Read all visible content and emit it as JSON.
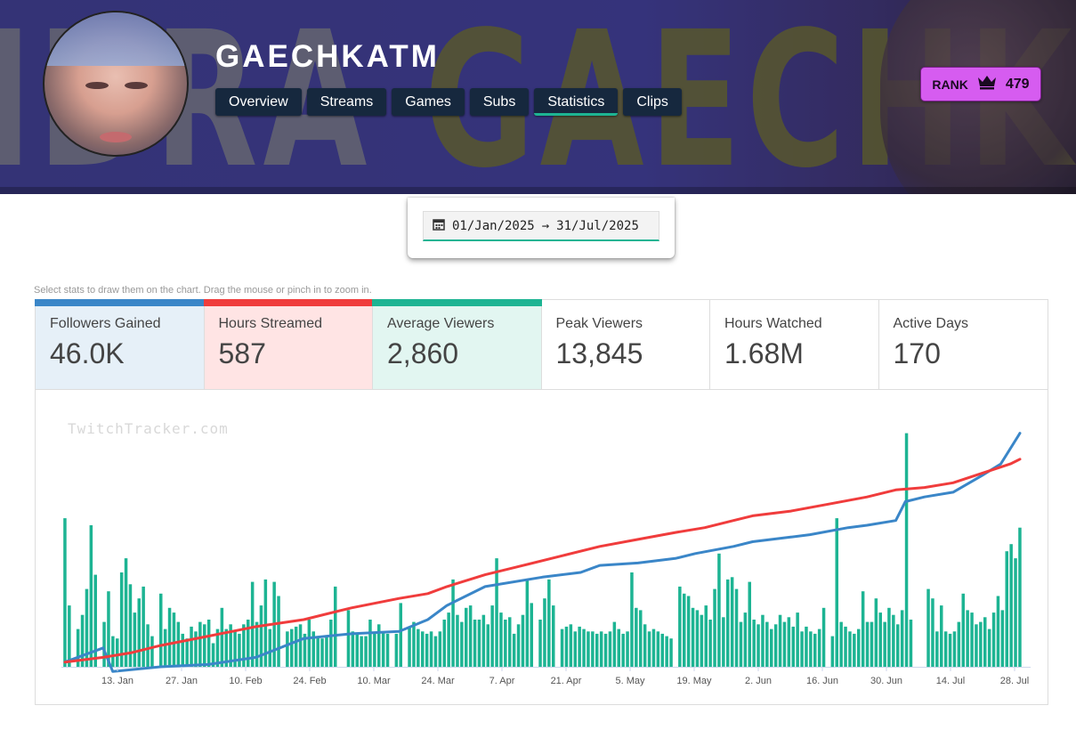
{
  "channel": {
    "name": "GAECHKATM",
    "banner_text_1": "IDRA",
    "banner_text_2": "GAECHKATM"
  },
  "nav": {
    "tabs": [
      "Overview",
      "Streams",
      "Games",
      "Subs",
      "Statistics",
      "Clips"
    ],
    "active": "Statistics"
  },
  "rank": {
    "label": "RANK",
    "icon": "crown-icon",
    "value": "479"
  },
  "date_range": {
    "start": "01/Jan/2025",
    "arrow": "→",
    "end": "31/Jul/2025",
    "icon": "calendar-icon"
  },
  "hint": "Select stats to draw them on the chart. Drag the mouse or pinch in to zoom in.",
  "stats": [
    {
      "label": "Followers Gained",
      "value": "46.0K",
      "selected": true,
      "color": "#3a86c8",
      "bg": "#e6f0f8"
    },
    {
      "label": "Hours Streamed",
      "value": "587",
      "selected": true,
      "color": "#f03c3c",
      "bg": "#ffe4e4"
    },
    {
      "label": "Average Viewers",
      "value": "2,860",
      "selected": true,
      "color": "#1db493",
      "bg": "#e2f6f1"
    },
    {
      "label": "Peak Viewers",
      "value": "13,845",
      "selected": false,
      "color": "",
      "bg": "#ffffff"
    },
    {
      "label": "Hours Watched",
      "value": "1.68M",
      "selected": false,
      "color": "",
      "bg": "#ffffff"
    },
    {
      "label": "Active Days",
      "value": "170",
      "selected": false,
      "color": "",
      "bg": "#ffffff"
    }
  ],
  "chart": {
    "watermark": "TwitchTracker.com"
  },
  "chart_data": {
    "type": "bar",
    "x_ticks": [
      "13. Jan",
      "27. Jan",
      "10. Feb",
      "24. Feb",
      "10. Mar",
      "24. Mar",
      "7. Apr",
      "21. Apr",
      "5. May",
      "19. May",
      "2. Jun",
      "16. Jun",
      "30. Jun",
      "14. Jul",
      "28. Jul"
    ],
    "series": [
      {
        "type": "bar",
        "color": "#1db493",
        "values": [
          0.63,
          0.26,
          0,
          0.16,
          0.22,
          0.33,
          0.6,
          0.39,
          0,
          0.19,
          0.32,
          0.13,
          0.12,
          0.4,
          0.46,
          0.35,
          0.23,
          0.29,
          0.34,
          0.18,
          0.13,
          0,
          0.31,
          0.16,
          0.25,
          0.23,
          0.19,
          0.14,
          0.12,
          0.17,
          0.15,
          0.19,
          0.18,
          0.2,
          0.1,
          0.16,
          0.25,
          0.16,
          0.18,
          0.15,
          0.14,
          0.18,
          0.2,
          0.36,
          0.19,
          0.26,
          0.37,
          0.16,
          0.36,
          0.3,
          0,
          0.15,
          0.16,
          0.17,
          0.18,
          0.14,
          0.2,
          0.15,
          0.13,
          0.12,
          0.13,
          0.2,
          0.34,
          0,
          0,
          0.24,
          0.15,
          0.14,
          0.13,
          0.13,
          0.2,
          0.14,
          0.18,
          0.15,
          0.14,
          0,
          0.14,
          0.27,
          0,
          0.17,
          0.19,
          0.16,
          0.15,
          0.14,
          0.15,
          0.13,
          0.15,
          0.2,
          0.23,
          0.37,
          0.22,
          0.19,
          0.25,
          0.26,
          0.2,
          0.2,
          0.22,
          0.18,
          0.26,
          0.46,
          0.23,
          0.2,
          0.21,
          0.14,
          0.18,
          0.22,
          0.37,
          0.27,
          0,
          0.2,
          0.29,
          0.37,
          0.26,
          0,
          0.16,
          0.17,
          0.18,
          0.15,
          0.17,
          0.16,
          0.15,
          0.15,
          0.14,
          0.15,
          0.14,
          0.15,
          0.19,
          0.16,
          0.14,
          0.15,
          0.4,
          0.25,
          0.24,
          0.18,
          0.15,
          0.16,
          0.15,
          0.14,
          0.13,
          0.12,
          0,
          0.34,
          0.31,
          0.3,
          0.25,
          0.24,
          0.22,
          0.26,
          0.2,
          0.33,
          0.48,
          0.21,
          0.37,
          0.38,
          0.33,
          0.19,
          0.23,
          0.36,
          0.2,
          0.18,
          0.22,
          0.19,
          0.16,
          0.18,
          0.22,
          0.19,
          0.21,
          0.17,
          0.23,
          0.15,
          0.17,
          0.15,
          0.14,
          0.16,
          0.25,
          0,
          0.13,
          0.63,
          0.19,
          0.17,
          0.15,
          0.14,
          0.16,
          0.32,
          0.19,
          0.19,
          0.29,
          0.23,
          0.19,
          0.25,
          0.22,
          0.18,
          0.24,
          0.99,
          0.2,
          0,
          0,
          0,
          0.33,
          0.29,
          0.15,
          0.26,
          0.15,
          0.14,
          0.15,
          0.19,
          0.31,
          0.24,
          0.23,
          0.18,
          0.19,
          0.21,
          0.16,
          0.23,
          0.3,
          0.24,
          0.49,
          0.52,
          0.46,
          0.59
        ]
      },
      {
        "type": "line",
        "name": "Followers Gained",
        "color": "#3a86c8",
        "points": [
          [
            0,
            0.02
          ],
          [
            0.04,
            0.08
          ],
          [
            0.05,
            -0.02
          ],
          [
            0.1,
            0
          ],
          [
            0.15,
            0.01
          ],
          [
            0.2,
            0.04
          ],
          [
            0.25,
            0.12
          ],
          [
            0.3,
            0.14
          ],
          [
            0.35,
            0.15
          ],
          [
            0.38,
            0.2
          ],
          [
            0.4,
            0.26
          ],
          [
            0.44,
            0.34
          ],
          [
            0.5,
            0.38
          ],
          [
            0.54,
            0.4
          ],
          [
            0.56,
            0.43
          ],
          [
            0.6,
            0.44
          ],
          [
            0.64,
            0.46
          ],
          [
            0.66,
            0.48
          ],
          [
            0.7,
            0.51
          ],
          [
            0.72,
            0.53
          ],
          [
            0.76,
            0.55
          ],
          [
            0.78,
            0.56
          ],
          [
            0.82,
            0.59
          ],
          [
            0.84,
            0.6
          ],
          [
            0.87,
            0.62
          ],
          [
            0.88,
            0.7
          ],
          [
            0.9,
            0.72
          ],
          [
            0.93,
            0.74
          ],
          [
            0.96,
            0.81
          ],
          [
            0.98,
            0.86
          ],
          [
            1,
            0.99
          ]
        ]
      },
      {
        "type": "line",
        "name": "Hours Streamed",
        "color": "#f03c3c",
        "points": [
          [
            0,
            0.02
          ],
          [
            0.04,
            0.04
          ],
          [
            0.07,
            0.06
          ],
          [
            0.1,
            0.09
          ],
          [
            0.15,
            0.13
          ],
          [
            0.2,
            0.17
          ],
          [
            0.25,
            0.2
          ],
          [
            0.3,
            0.25
          ],
          [
            0.35,
            0.29
          ],
          [
            0.38,
            0.31
          ],
          [
            0.4,
            0.34
          ],
          [
            0.44,
            0.39
          ],
          [
            0.48,
            0.43
          ],
          [
            0.52,
            0.47
          ],
          [
            0.56,
            0.51
          ],
          [
            0.6,
            0.54
          ],
          [
            0.64,
            0.57
          ],
          [
            0.67,
            0.59
          ],
          [
            0.7,
            0.62
          ],
          [
            0.72,
            0.64
          ],
          [
            0.76,
            0.66
          ],
          [
            0.8,
            0.69
          ],
          [
            0.84,
            0.72
          ],
          [
            0.87,
            0.75
          ],
          [
            0.9,
            0.76
          ],
          [
            0.93,
            0.78
          ],
          [
            0.96,
            0.82
          ],
          [
            0.99,
            0.86
          ],
          [
            1,
            0.88
          ]
        ]
      }
    ]
  }
}
